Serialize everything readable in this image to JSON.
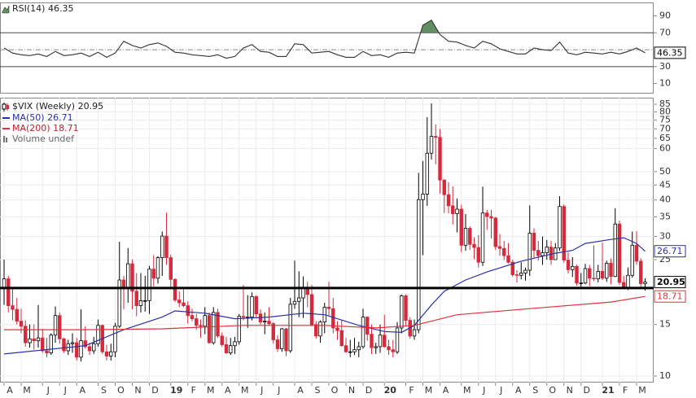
{
  "chart_data": [
    {
      "type": "line",
      "legend": "RSI(14) 46.35",
      "color": "#333333",
      "fill_color": "#5f8f62",
      "fill_above": 70,
      "reference_lines": [
        30,
        70
      ],
      "center_line": 50,
      "ylim": [
        0,
        104
      ],
      "yticks": [
        10,
        30,
        70,
        90
      ],
      "x": [
        0,
        2,
        4,
        6,
        8,
        10,
        12,
        14,
        16,
        18,
        20,
        22,
        24,
        26,
        28,
        30,
        32,
        34,
        36,
        38,
        40,
        42,
        44,
        46,
        48,
        50,
        52,
        54,
        56,
        58,
        60,
        62,
        64,
        66,
        68,
        70,
        72,
        74,
        76,
        78,
        80,
        82,
        84,
        86,
        88,
        90,
        92,
        94,
        96,
        98,
        100,
        102,
        104,
        106,
        108,
        110,
        112,
        114,
        116,
        118,
        120,
        122,
        124,
        126,
        128,
        130,
        132,
        134,
        136,
        138,
        140,
        142,
        144,
        146,
        148,
        150
      ],
      "values": [
        52,
        46,
        44,
        43,
        45,
        42,
        48,
        43,
        44,
        46,
        42,
        47,
        41,
        46,
        60,
        55,
        52,
        56,
        58,
        54,
        47,
        46,
        44,
        43,
        42,
        44,
        40,
        42,
        52,
        56,
        48,
        47,
        42,
        42,
        57,
        56,
        46,
        47,
        48,
        44,
        41,
        41,
        48,
        43,
        44,
        41,
        46,
        47,
        46,
        79,
        85,
        68,
        60,
        59,
        55,
        52,
        60,
        57,
        51,
        48,
        45,
        45,
        52,
        50,
        49,
        59,
        46,
        44,
        47,
        46,
        45,
        47,
        45,
        48,
        52,
        46.35
      ]
    },
    {
      "type": "candlestick",
      "legend": "$VIX (Weekly) 20.95",
      "volume_label": "Volume undef",
      "up_color": "#000000",
      "down_color": "#d42a3c",
      "log_scale": true,
      "grid": true,
      "horizontal_line": 20,
      "ylim": [
        9.5,
        89.5
      ],
      "yticks": [
        10,
        15,
        25,
        30,
        35,
        40,
        45,
        50,
        60,
        65,
        70,
        75,
        80,
        85
      ],
      "xticks": [
        {
          "value": 0,
          "label": "A"
        },
        {
          "value": 4,
          "label": "M"
        },
        {
          "value": 9,
          "label": "J"
        },
        {
          "value": 13,
          "label": "J"
        },
        {
          "value": 17,
          "label": "A"
        },
        {
          "value": 22,
          "label": "S"
        },
        {
          "value": 26,
          "label": "O"
        },
        {
          "value": 30,
          "label": "N"
        },
        {
          "value": 34,
          "label": "D"
        },
        {
          "value": 39,
          "label": "19"
        },
        {
          "value": 43,
          "label": "F"
        },
        {
          "value": 47,
          "label": "M"
        },
        {
          "value": 51,
          "label": "A"
        },
        {
          "value": 55,
          "label": "M"
        },
        {
          "value": 59,
          "label": "J"
        },
        {
          "value": 63,
          "label": "J"
        },
        {
          "value": 68,
          "label": "A"
        },
        {
          "value": 72,
          "label": "S"
        },
        {
          "value": 76,
          "label": "O"
        },
        {
          "value": 80,
          "label": "N"
        },
        {
          "value": 84,
          "label": "D"
        },
        {
          "value": 89,
          "label": "20"
        },
        {
          "value": 94,
          "label": "F"
        },
        {
          "value": 98,
          "label": "M"
        },
        {
          "value": 102,
          "label": "A"
        },
        {
          "value": 107,
          "label": "M"
        },
        {
          "value": 111,
          "label": "J"
        },
        {
          "value": 115,
          "label": "J"
        },
        {
          "value": 119,
          "label": "A"
        },
        {
          "value": 123,
          "label": "S"
        },
        {
          "value": 127,
          "label": "O"
        },
        {
          "value": 131,
          "label": "N"
        },
        {
          "value": 135,
          "label": "D"
        },
        {
          "value": 140,
          "label": "21"
        },
        {
          "value": 144,
          "label": "F"
        },
        {
          "value": 148,
          "label": "M"
        }
      ],
      "ohlc": [
        [
          20.0,
          25.0,
          17.5,
          21.5
        ],
        [
          21.5,
          22.0,
          16.5,
          17.4
        ],
        [
          17.4,
          20.0,
          15.5,
          16.9
        ],
        [
          16.9,
          18.5,
          15.0,
          15.4
        ],
        [
          15.4,
          17.0,
          14.0,
          14.8
        ],
        [
          14.8,
          15.5,
          12.6,
          13.0
        ],
        [
          13.0,
          15.0,
          12.5,
          13.4
        ],
        [
          13.4,
          15.0,
          12.3,
          13.2
        ],
        [
          13.2,
          17.5,
          12.5,
          13.5
        ],
        [
          13.5,
          14.5,
          12.0,
          12.2
        ],
        [
          12.2,
          13.5,
          11.6,
          12.0
        ],
        [
          12.0,
          14.0,
          11.8,
          13.8
        ],
        [
          13.8,
          17.3,
          13.0,
          16.1
        ],
        [
          16.1,
          16.5,
          12.9,
          13.4
        ],
        [
          13.4,
          13.5,
          12.0,
          12.2
        ],
        [
          12.2,
          13.3,
          11.8,
          12.9
        ],
        [
          12.9,
          14.0,
          12.0,
          13.0
        ],
        [
          13.0,
          13.5,
          11.3,
          11.6
        ],
        [
          11.6,
          16.9,
          11.2,
          13.2
        ],
        [
          13.2,
          14.8,
          12.4,
          12.6
        ],
        [
          12.6,
          13.0,
          11.8,
          12.2
        ],
        [
          12.2,
          13.6,
          11.9,
          12.9
        ],
        [
          12.9,
          15.6,
          12.6,
          14.9
        ],
        [
          14.9,
          15.0,
          11.9,
          12.1
        ],
        [
          12.1,
          12.8,
          11.3,
          11.7
        ],
        [
          11.7,
          12.9,
          11.3,
          12.1
        ],
        [
          12.1,
          15.2,
          11.6,
          14.8
        ],
        [
          14.8,
          28.8,
          14.6,
          21.3
        ],
        [
          21.3,
          22.0,
          16.9,
          19.9
        ],
        [
          19.9,
          27.4,
          17.8,
          24.2
        ],
        [
          24.2,
          25.0,
          16.9,
          19.5
        ],
        [
          19.5,
          22.5,
          16.0,
          17.4
        ],
        [
          17.4,
          22.5,
          16.5,
          18.1
        ],
        [
          18.1,
          22.0,
          16.6,
          18.1
        ],
        [
          18.1,
          23.8,
          16.3,
          23.2
        ],
        [
          23.2,
          25.9,
          20.3,
          21.6
        ],
        [
          21.6,
          25.7,
          20.7,
          25.4
        ],
        [
          25.4,
          31.2,
          22.0,
          30.1
        ],
        [
          30.1,
          36.2,
          24.0,
          25.4
        ],
        [
          25.4,
          26.0,
          19.9,
          21.4
        ],
        [
          21.4,
          21.6,
          17.9,
          18.2
        ],
        [
          18.2,
          19.5,
          17.2,
          17.8
        ],
        [
          17.8,
          20.0,
          17.2,
          17.4
        ],
        [
          17.4,
          18.0,
          15.1,
          16.1
        ],
        [
          16.1,
          17.0,
          15.4,
          15.7
        ],
        [
          15.7,
          16.3,
          14.4,
          14.9
        ],
        [
          14.9,
          15.6,
          13.5,
          14.8
        ],
        [
          14.8,
          17.2,
          13.9,
          16.1
        ],
        [
          16.1,
          16.5,
          12.9,
          13.0
        ],
        [
          13.0,
          17.2,
          12.8,
          16.5
        ],
        [
          16.5,
          17.0,
          13.5,
          13.7
        ],
        [
          13.7,
          14.1,
          12.6,
          12.8
        ],
        [
          12.8,
          13.6,
          11.9,
          12.0
        ],
        [
          12.0,
          13.5,
          11.8,
          12.7
        ],
        [
          12.7,
          13.6,
          11.9,
          13.1
        ],
        [
          13.1,
          16.3,
          12.8,
          16.0
        ],
        [
          16.0,
          20.5,
          15.5,
          15.9
        ],
        [
          15.9,
          18.9,
          14.6,
          15.9
        ],
        [
          15.9,
          19.3,
          15.5,
          18.7
        ],
        [
          18.7,
          18.9,
          15.8,
          16.3
        ],
        [
          16.3,
          16.9,
          15.0,
          15.3
        ],
        [
          15.3,
          16.5,
          13.9,
          15.4
        ],
        [
          15.4,
          17.2,
          14.9,
          15.1
        ],
        [
          15.1,
          15.3,
          12.9,
          13.3
        ],
        [
          13.3,
          13.8,
          12.1,
          12.4
        ],
        [
          12.4,
          14.6,
          12.1,
          14.5
        ],
        [
          14.5,
          14.6,
          11.7,
          12.2
        ],
        [
          12.2,
          18.5,
          12.0,
          17.6
        ],
        [
          17.6,
          24.8,
          17.0,
          18.0
        ],
        [
          18.0,
          22.8,
          15.9,
          18.5
        ],
        [
          18.5,
          21.9,
          15.8,
          19.9
        ],
        [
          19.9,
          21.0,
          17.2,
          19.0
        ],
        [
          19.0,
          20.5,
          14.8,
          15.0
        ],
        [
          15.0,
          15.4,
          13.4,
          13.7
        ],
        [
          13.7,
          15.5,
          13.0,
          15.3
        ],
        [
          15.3,
          17.8,
          14.0,
          17.2
        ],
        [
          17.2,
          21.0,
          16.1,
          17.0
        ],
        [
          17.0,
          18.5,
          14.0,
          14.6
        ],
        [
          14.6,
          15.4,
          13.3,
          14.3
        ],
        [
          14.3,
          15.5,
          12.6,
          12.7
        ],
        [
          12.7,
          13.5,
          12.0,
          12.1
        ],
        [
          12.1,
          13.3,
          11.6,
          12.1
        ],
        [
          12.1,
          13.5,
          11.8,
          12.3
        ],
        [
          12.3,
          13.1,
          11.6,
          12.6
        ],
        [
          12.6,
          17.0,
          12.4,
          15.9
        ],
        [
          15.9,
          16.0,
          13.2,
          13.9
        ],
        [
          13.9,
          15.0,
          11.9,
          12.5
        ],
        [
          12.5,
          13.0,
          11.9,
          12.6
        ],
        [
          12.6,
          15.0,
          12.0,
          13.8
        ],
        [
          13.8,
          16.2,
          12.5,
          12.6
        ],
        [
          12.6,
          13.3,
          11.8,
          12.3
        ],
        [
          12.3,
          13.3,
          11.6,
          12.1
        ],
        [
          12.1,
          15.3,
          11.9,
          14.6
        ],
        [
          14.6,
          19.0,
          14.0,
          18.8
        ],
        [
          18.8,
          19.0,
          14.9,
          15.5
        ],
        [
          15.5,
          15.9,
          13.4,
          13.7
        ],
        [
          13.7,
          15.6,
          13.3,
          14.4
        ],
        [
          14.4,
          49.5,
          14.0,
          40.1
        ],
        [
          40.1,
          54.4,
          25.9,
          41.9
        ],
        [
          41.9,
          76.8,
          38.2,
          57.8
        ],
        [
          57.8,
          85.5,
          55.0,
          66.0
        ],
        [
          66.0,
          72.5,
          53.0,
          65.5
        ],
        [
          65.5,
          70.0,
          42.0,
          46.8
        ],
        [
          46.8,
          47.0,
          36.1,
          41.7
        ],
        [
          41.7,
          46.0,
          36.0,
          38.2
        ],
        [
          38.2,
          44.5,
          33.0,
          35.9
        ],
        [
          35.9,
          40.5,
          31.0,
          37.2
        ],
        [
          37.2,
          38.5,
          26.5,
          28.0
        ],
        [
          28.0,
          35.8,
          26.8,
          32.0
        ],
        [
          32.0,
          32.5,
          27.0,
          28.2
        ],
        [
          28.2,
          29.8,
          25.1,
          27.5
        ],
        [
          27.5,
          30.3,
          23.5,
          24.5
        ],
        [
          24.5,
          44.4,
          23.8,
          36.1
        ],
        [
          36.1,
          37.0,
          31.6,
          35.1
        ],
        [
          35.1,
          37.0,
          29.5,
          34.7
        ],
        [
          34.7,
          35.0,
          27.0,
          27.7
        ],
        [
          27.7,
          30.6,
          25.8,
          27.3
        ],
        [
          27.3,
          29.0,
          24.9,
          25.8
        ],
        [
          25.8,
          28.5,
          24.3,
          24.5
        ],
        [
          24.5,
          25.0,
          21.9,
          22.2
        ],
        [
          22.2,
          23.0,
          20.9,
          22.1
        ],
        [
          22.1,
          24.5,
          21.4,
          22.5
        ],
        [
          22.5,
          23.5,
          21.2,
          23.0
        ],
        [
          23.0,
          38.3,
          22.0,
          30.8
        ],
        [
          30.8,
          32.0,
          25.4,
          26.9
        ],
        [
          26.9,
          29.0,
          24.8,
          25.8
        ],
        [
          25.8,
          30.0,
          24.0,
          26.4
        ],
        [
          26.4,
          29.2,
          25.0,
          27.6
        ],
        [
          27.6,
          29.0,
          24.0,
          25.0
        ],
        [
          25.0,
          28.5,
          25.0,
          27.4
        ],
        [
          27.4,
          41.2,
          26.8,
          38.0
        ],
        [
          38.0,
          38.6,
          24.4,
          24.9
        ],
        [
          24.9,
          26.5,
          22.4,
          23.1
        ],
        [
          23.1,
          25.5,
          21.8,
          23.7
        ],
        [
          23.7,
          24.0,
          20.4,
          20.8
        ],
        [
          20.8,
          22.5,
          20.2,
          20.8
        ],
        [
          20.8,
          24.2,
          20.6,
          23.3
        ],
        [
          23.3,
          24.0,
          20.3,
          21.6
        ],
        [
          21.6,
          28.0,
          21.1,
          21.5
        ],
        [
          21.5,
          24.0,
          20.9,
          22.8
        ],
        [
          22.8,
          28.6,
          21.3,
          21.6
        ],
        [
          21.6,
          24.8,
          21.0,
          24.3
        ],
        [
          24.3,
          25.2,
          20.6,
          21.9
        ],
        [
          21.9,
          37.5,
          21.8,
          33.1
        ],
        [
          33.1,
          34.0,
          20.5,
          20.9
        ],
        [
          20.9,
          22.0,
          19.9,
          20.0
        ],
        [
          20.0,
          23.5,
          19.7,
          22.1
        ],
        [
          22.1,
          31.2,
          21.7,
          28.0
        ],
        [
          28.0,
          31.3,
          24.0,
          24.7
        ],
        [
          24.7,
          25.3,
          19.9,
          20.7
        ],
        [
          20.7,
          21.6,
          19.6,
          20.95
        ]
      ],
      "series": [
        {
          "name": "MA(50) 26.71",
          "color": "#2b2fa8",
          "x": [
            0,
            19,
            28,
            37,
            40,
            47,
            54,
            62,
            70,
            75,
            83,
            89,
            93,
            96,
            100,
            103,
            108,
            113,
            121,
            129,
            133,
            136,
            142,
            145,
            148,
            150
          ],
          "values": [
            11.9,
            12.7,
            14.4,
            15.9,
            16.7,
            16.4,
            15.7,
            15.9,
            16.4,
            16.2,
            14.9,
            14.2,
            14.1,
            14.9,
            17.5,
            19.5,
            21.3,
            22.7,
            24.7,
            26.3,
            26.9,
            28.4,
            29.3,
            29.7,
            28.4,
            26.71
          ]
        },
        {
          "name": "MA(200) 18.71",
          "color": "#e0313c",
          "x": [
            0,
            19,
            37,
            56,
            75,
            87,
            96,
            100,
            106,
            123,
            142,
            150
          ],
          "values": [
            14.4,
            14.4,
            14.5,
            14.9,
            14.9,
            14.6,
            14.9,
            15.4,
            16.2,
            17.0,
            17.9,
            18.71
          ]
        }
      ]
    }
  ]
}
